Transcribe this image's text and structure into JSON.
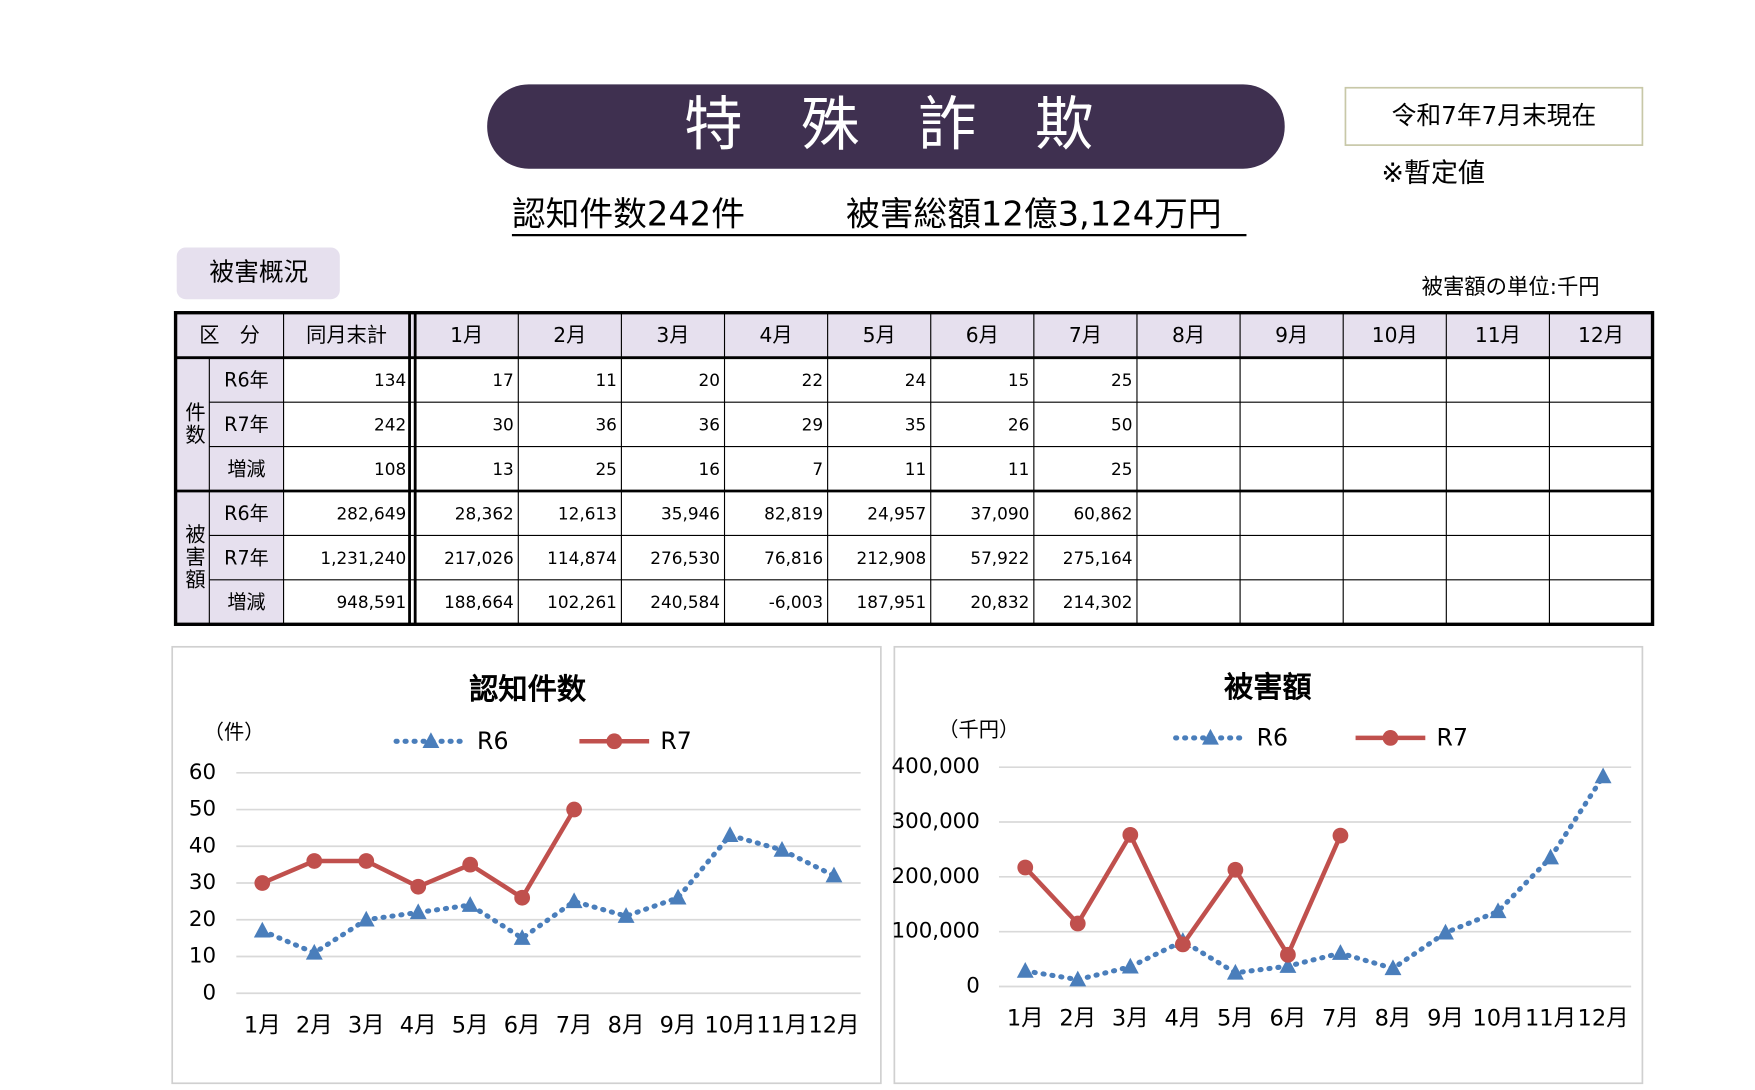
{
  "header": {
    "title": "特　殊　詐　欺",
    "date": "令和7年7月末現在",
    "note": "※暫定値",
    "summary_count": "認知件数242件",
    "summary_amount": "被害総額12億3,124万円",
    "section": "被害概況",
    "unit": "被害額の単位:千円"
  },
  "table": {
    "headers": [
      "区　分",
      "同月末計",
      "1月",
      "2月",
      "3月",
      "4月",
      "5月",
      "6月",
      "7月",
      "8月",
      "9月",
      "10月",
      "11月",
      "12月"
    ],
    "groups": [
      {
        "label": "件数",
        "rows": [
          {
            "label": "R6年",
            "cells": [
              "134",
              "17",
              "11",
              "20",
              "22",
              "24",
              "15",
              "25"
            ]
          },
          {
            "label": "R7年",
            "cells": [
              "242",
              "30",
              "36",
              "36",
              "29",
              "35",
              "26",
              "50"
            ]
          },
          {
            "label": "増減",
            "cells": [
              "108",
              "13",
              "25",
              "16",
              "7",
              "11",
              "11",
              "25"
            ]
          }
        ]
      },
      {
        "label": "被害額",
        "rows": [
          {
            "label": "R6年",
            "cells": [
              "282,649",
              "28,362",
              "12,613",
              "35,946",
              "82,819",
              "24,957",
              "37,090",
              "60,862"
            ]
          },
          {
            "label": "R7年",
            "cells": [
              "1,231,240",
              "217,026",
              "114,874",
              "276,530",
              "76,816",
              "212,908",
              "57,922",
              "275,164"
            ]
          },
          {
            "label": "増減",
            "cells": [
              "948,591",
              "188,664",
              "102,261",
              "240,584",
              "-6,003",
              "187,951",
              "20,832",
              "214,302"
            ]
          }
        ]
      }
    ]
  },
  "chart_data": [
    {
      "type": "line",
      "title": "認知件数",
      "y_label": "（件）",
      "categories": [
        "1月",
        "2月",
        "3月",
        "4月",
        "5月",
        "6月",
        "7月",
        "8月",
        "9月",
        "10月",
        "11月",
        "12月"
      ],
      "series": [
        {
          "name": "R6",
          "color": "#4a7ebb",
          "values": [
            17,
            11,
            20,
            22,
            24,
            15,
            25,
            21,
            26,
            43,
            39,
            32
          ]
        },
        {
          "name": "R7",
          "color": "#c0504d",
          "values": [
            30,
            36,
            36,
            29,
            35,
            26,
            50,
            null,
            null,
            null,
            null,
            null
          ]
        }
      ],
      "ylim": [
        0,
        60
      ],
      "yticks": [
        0,
        10,
        20,
        30,
        40,
        50,
        60
      ],
      "grid": true
    },
    {
      "type": "line",
      "title": "被害額",
      "y_label": "（千円）",
      "categories": [
        "1月",
        "2月",
        "3月",
        "4月",
        "5月",
        "6月",
        "7月",
        "8月",
        "9月",
        "10月",
        "11月",
        "12月"
      ],
      "series": [
        {
          "name": "R6",
          "color": "#4a7ebb",
          "values": [
            28362,
            12613,
            35946,
            82819,
            24957,
            37090,
            60862,
            33000,
            98000,
            137000,
            235000,
            383000
          ]
        },
        {
          "name": "R7",
          "color": "#c0504d",
          "values": [
            217026,
            114874,
            276530,
            76816,
            212908,
            57922,
            275164,
            null,
            null,
            null,
            null,
            null
          ]
        }
      ],
      "ylim": [
        0,
        400000
      ],
      "yticks": [
        0,
        {
          "value": 100000,
          "label": "100,000"
        },
        {
          "value": 200000,
          "label": "200,000"
        },
        {
          "value": 300000,
          "label": "300,000"
        },
        {
          "value": 400000,
          "label": "400,000"
        }
      ],
      "grid": true
    }
  ]
}
